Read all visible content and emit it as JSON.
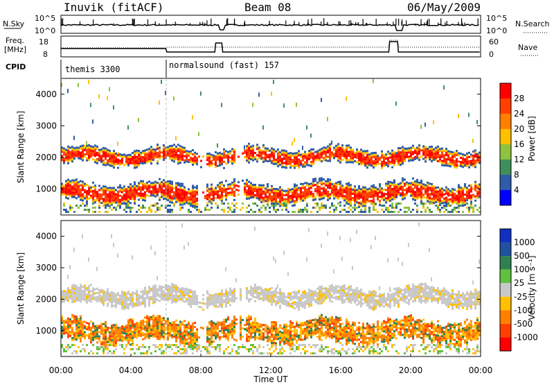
{
  "header": {
    "station": "Inuvik (fitACF)",
    "beam": "Beam 08",
    "date": "06/May/2009"
  },
  "top_panel": {
    "left_label": "N.Sky",
    "left_ticks": [
      "10^5",
      "10^0"
    ],
    "right_label": "N.Search",
    "right_ticks": [
      "10^5",
      "10^0"
    ]
  },
  "freq_panel": {
    "left_label_1": "Freq.",
    "left_label_2": "[MHz]",
    "left_ticks": [
      "18",
      "8"
    ],
    "right_label": "Nave",
    "right_ticks": [
      "60",
      "0"
    ]
  },
  "cpid": {
    "label": "CPID",
    "segments": [
      {
        "name": "themis 3300",
        "start_h": 0
      },
      {
        "name": "normalsound (fast) 157",
        "start_h": 6
      }
    ]
  },
  "x_axis": {
    "label": "Time UT",
    "ticks": [
      "00:00",
      "04:00",
      "08:00",
      "12:00",
      "16:00",
      "20:00",
      "00:00"
    ]
  },
  "power_panel": {
    "ylabel": "Slant Range [km]",
    "yticks": [
      "1000",
      "2000",
      "3000",
      "4000"
    ],
    "colorbar_label": "Power [dB]",
    "colorbar_ticks": [
      "4",
      "8",
      "12",
      "16",
      "20",
      "24",
      "28"
    ],
    "colors": [
      "#0000ff",
      "#2f5ca8",
      "#3f8f5a",
      "#8fc33f",
      "#ffc000",
      "#ff8000",
      "#ff4000",
      "#ff0000"
    ]
  },
  "velocity_panel": {
    "ylabel": "Slant Range [km]",
    "yticks": [
      "1000",
      "2000",
      "3000",
      "4000"
    ],
    "colorbar_label": "Velocity [m s⁻¹]",
    "colorbar_ticks": [
      "1000",
      "500",
      "100",
      "25",
      "-25",
      "-100",
      "-500",
      "-1000"
    ],
    "colors": [
      "#1030c0",
      "#2050a0",
      "#308050",
      "#60c040",
      "#c8c8c8",
      "#ffc000",
      "#ff8000",
      "#ff4000",
      "#ff0000"
    ]
  },
  "chart_data": {
    "type": "heatmap",
    "x_range_hours": [
      0,
      24
    ],
    "y_range_km": [
      180,
      4500
    ],
    "power_bands": [
      {
        "y_center_km": 2050,
        "y_halfwidth_km": 250,
        "power_db": 24
      },
      {
        "y_center_km": 900,
        "y_halfwidth_km": 300,
        "power_db": 27
      }
    ],
    "velocity_bands": [
      {
        "y_center_km": 2100,
        "y_halfwidth_km": 260,
        "velocity_ms": 0
      },
      {
        "y_center_km": 1000,
        "y_halfwidth_km": 350,
        "velocity_ms": -300
      }
    ]
  }
}
